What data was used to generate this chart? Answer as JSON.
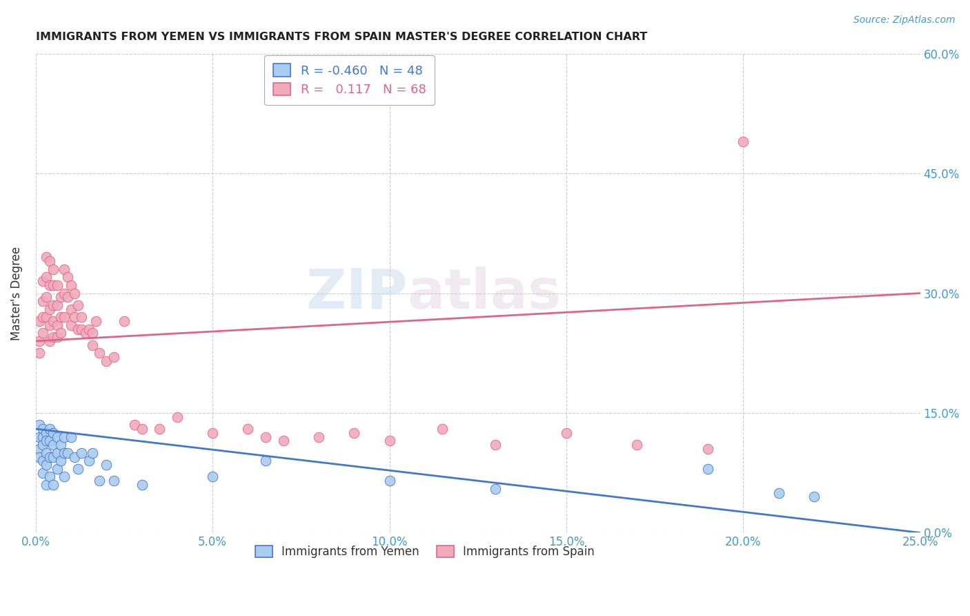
{
  "title": "IMMIGRANTS FROM YEMEN VS IMMIGRANTS FROM SPAIN MASTER'S DEGREE CORRELATION CHART",
  "source": "Source: ZipAtlas.com",
  "ylabel": "Master's Degree",
  "xlim": [
    0.0,
    0.25
  ],
  "ylim": [
    0.0,
    0.6
  ],
  "legend_r1": "-0.460",
  "legend_n1": "48",
  "legend_r2": "0.117",
  "legend_n2": "68",
  "color_yemen": "#aaccf0",
  "color_spain": "#f0aabb",
  "color_yemen_line": "#4477cc",
  "color_spain_line": "#dd6688",
  "color_axis_labels": "#4499cc",
  "watermark_zip": "ZIP",
  "watermark_atlas": "atlas",
  "yemen_x": [
    0.001,
    0.001,
    0.001,
    0.001,
    0.002,
    0.002,
    0.002,
    0.002,
    0.002,
    0.003,
    0.003,
    0.003,
    0.003,
    0.003,
    0.004,
    0.004,
    0.004,
    0.004,
    0.005,
    0.005,
    0.005,
    0.005,
    0.006,
    0.006,
    0.006,
    0.007,
    0.007,
    0.008,
    0.008,
    0.008,
    0.009,
    0.01,
    0.011,
    0.012,
    0.013,
    0.015,
    0.016,
    0.018,
    0.02,
    0.022,
    0.03,
    0.05,
    0.065,
    0.1,
    0.13,
    0.19,
    0.21,
    0.22
  ],
  "yemen_y": [
    0.12,
    0.135,
    0.105,
    0.095,
    0.13,
    0.12,
    0.11,
    0.09,
    0.075,
    0.125,
    0.115,
    0.1,
    0.085,
    0.06,
    0.13,
    0.115,
    0.095,
    0.07,
    0.125,
    0.11,
    0.095,
    0.06,
    0.12,
    0.1,
    0.08,
    0.11,
    0.09,
    0.12,
    0.1,
    0.07,
    0.1,
    0.12,
    0.095,
    0.08,
    0.1,
    0.09,
    0.1,
    0.065,
    0.085,
    0.065,
    0.06,
    0.07,
    0.09,
    0.065,
    0.055,
    0.08,
    0.05,
    0.045
  ],
  "spain_x": [
    0.001,
    0.001,
    0.001,
    0.002,
    0.002,
    0.002,
    0.002,
    0.003,
    0.003,
    0.003,
    0.003,
    0.004,
    0.004,
    0.004,
    0.004,
    0.004,
    0.005,
    0.005,
    0.005,
    0.005,
    0.005,
    0.006,
    0.006,
    0.006,
    0.006,
    0.007,
    0.007,
    0.007,
    0.008,
    0.008,
    0.008,
    0.009,
    0.009,
    0.01,
    0.01,
    0.01,
    0.011,
    0.011,
    0.012,
    0.012,
    0.013,
    0.013,
    0.014,
    0.015,
    0.016,
    0.016,
    0.017,
    0.018,
    0.02,
    0.022,
    0.025,
    0.028,
    0.03,
    0.035,
    0.04,
    0.05,
    0.06,
    0.065,
    0.07,
    0.08,
    0.09,
    0.1,
    0.115,
    0.13,
    0.15,
    0.17,
    0.19,
    0.2
  ],
  "spain_y": [
    0.24,
    0.265,
    0.225,
    0.29,
    0.315,
    0.27,
    0.25,
    0.32,
    0.345,
    0.295,
    0.27,
    0.34,
    0.31,
    0.28,
    0.26,
    0.24,
    0.33,
    0.31,
    0.285,
    0.265,
    0.245,
    0.31,
    0.285,
    0.26,
    0.245,
    0.295,
    0.27,
    0.25,
    0.33,
    0.3,
    0.27,
    0.32,
    0.295,
    0.31,
    0.28,
    0.26,
    0.3,
    0.27,
    0.285,
    0.255,
    0.27,
    0.255,
    0.25,
    0.255,
    0.25,
    0.235,
    0.265,
    0.225,
    0.215,
    0.22,
    0.265,
    0.135,
    0.13,
    0.13,
    0.145,
    0.125,
    0.13,
    0.12,
    0.115,
    0.12,
    0.125,
    0.115,
    0.13,
    0.11,
    0.125,
    0.11,
    0.105,
    0.49
  ]
}
